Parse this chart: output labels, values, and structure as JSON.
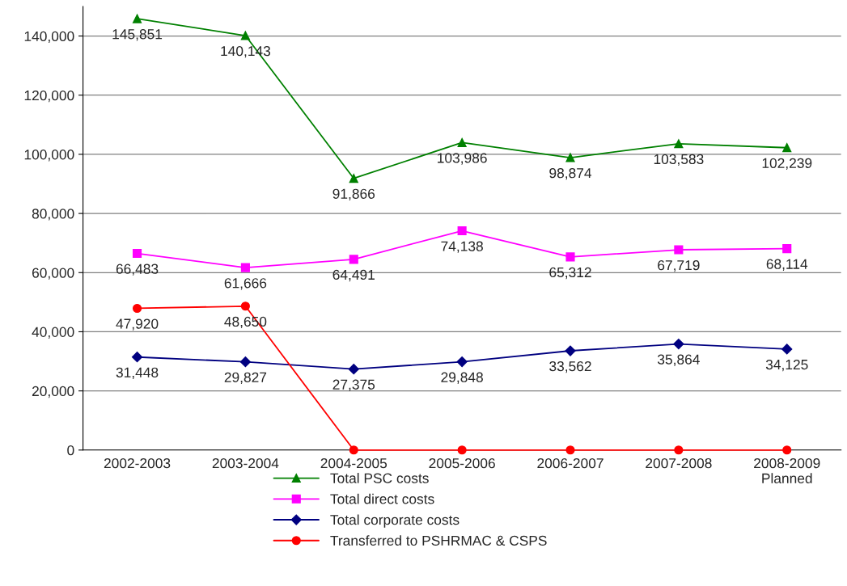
{
  "chart_data": {
    "type": "line",
    "categories": [
      "2002-2003",
      "2003-2004",
      "2004-2005",
      "2005-2006",
      "2006-2007",
      "2007-2008",
      "2008-2009\nPlanned"
    ],
    "series": [
      {
        "name": "Total PSC costs",
        "color": "#008000",
        "marker": "triangle",
        "values": [
          145851,
          140143,
          91866,
          103986,
          98874,
          103583,
          102239
        ],
        "value_labels": [
          "145,851",
          "140,143",
          "91,866",
          "103,986",
          "98,874",
          "103,583",
          "102,239"
        ]
      },
      {
        "name": "Total direct costs",
        "color": "#ff00ff",
        "marker": "square",
        "values": [
          66483,
          61666,
          64491,
          74138,
          65312,
          67719,
          68114
        ],
        "value_labels": [
          "66,483",
          "61,666",
          "64,491",
          "74,138",
          "65,312",
          "67,719",
          "68,114"
        ]
      },
      {
        "name": "Total corporate costs",
        "color": "#000080",
        "marker": "diamond",
        "values": [
          31448,
          29827,
          27375,
          29848,
          33562,
          35864,
          34125
        ],
        "value_labels": [
          "31,448",
          "29,827",
          "27,375",
          "29,848",
          "33,562",
          "35,864",
          "34,125"
        ]
      },
      {
        "name": "Transferred to PSHRMAC & CSPS",
        "color": "#ff0000",
        "marker": "circle",
        "values": [
          47920,
          48650,
          0,
          0,
          0,
          0,
          0
        ],
        "value_labels": [
          "47,920",
          "48,650",
          null,
          null,
          null,
          null,
          null
        ]
      }
    ],
    "ylim": [
      0,
      150000
    ],
    "yticks": [
      {
        "value": 0,
        "label": "0"
      },
      {
        "value": 20000,
        "label": "20,000"
      },
      {
        "value": 40000,
        "label": "40,000"
      },
      {
        "value": 60000,
        "label": "60,000"
      },
      {
        "value": 80000,
        "label": "80,000"
      },
      {
        "value": 100000,
        "label": "100,000"
      },
      {
        "value": 120000,
        "label": "120,000"
      },
      {
        "value": 140000,
        "label": "140,000"
      }
    ],
    "grid": "y",
    "legend": "bottom"
  }
}
